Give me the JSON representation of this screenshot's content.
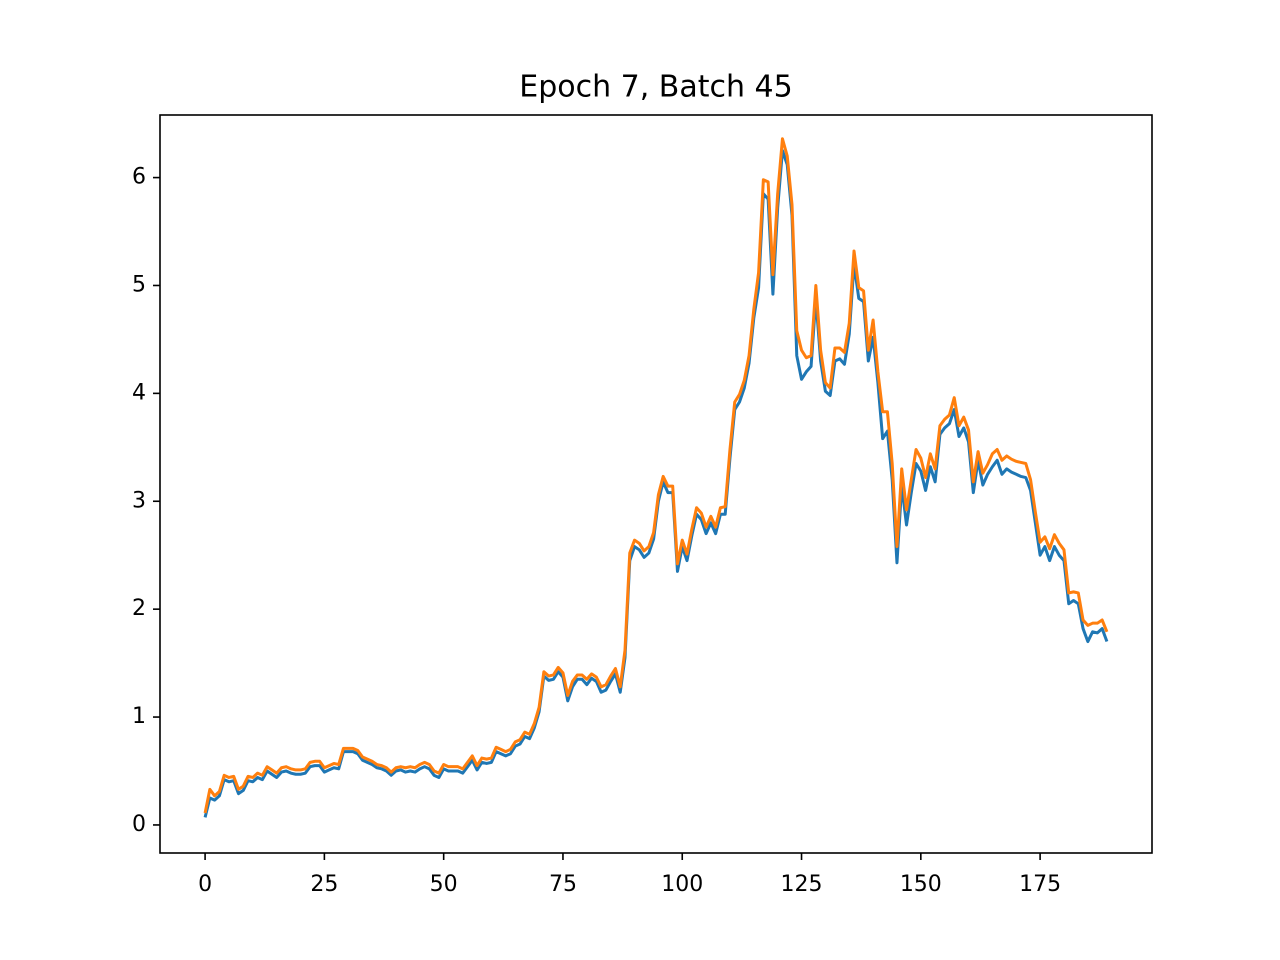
{
  "chart_data": {
    "type": "line",
    "title": "Epoch 7, Batch 45",
    "x": [
      0,
      1,
      2,
      3,
      4,
      5,
      6,
      7,
      8,
      9,
      10,
      11,
      12,
      13,
      14,
      15,
      16,
      17,
      18,
      19,
      20,
      21,
      22,
      23,
      24,
      25,
      26,
      27,
      28,
      29,
      30,
      31,
      32,
      33,
      34,
      35,
      36,
      37,
      38,
      39,
      40,
      41,
      42,
      43,
      44,
      45,
      46,
      47,
      48,
      49,
      50,
      51,
      52,
      53,
      54,
      55,
      56,
      57,
      58,
      59,
      60,
      61,
      62,
      63,
      64,
      65,
      66,
      67,
      68,
      69,
      70,
      71,
      72,
      73,
      74,
      75,
      76,
      77,
      78,
      79,
      80,
      81,
      82,
      83,
      84,
      85,
      86,
      87,
      88,
      89,
      90,
      91,
      92,
      93,
      94,
      95,
      96,
      97,
      98,
      99,
      100,
      101,
      102,
      103,
      104,
      105,
      106,
      107,
      108,
      109,
      110,
      111,
      112,
      113,
      114,
      115,
      116,
      117,
      118,
      119,
      120,
      121,
      122,
      123,
      124,
      125,
      126,
      127,
      128,
      129,
      130,
      131,
      132,
      133,
      134,
      135,
      136,
      137,
      138,
      139,
      140,
      141,
      142,
      143,
      144,
      145,
      146,
      147,
      148,
      149,
      150,
      151,
      152,
      153,
      154,
      155,
      156,
      157,
      158,
      159,
      160,
      161,
      162,
      163,
      164,
      165,
      166,
      167,
      168,
      169,
      170,
      171,
      172,
      173,
      174,
      175,
      176,
      177,
      178,
      179,
      180,
      181,
      182,
      183,
      184,
      185,
      186,
      187,
      188,
      189
    ],
    "series": [
      {
        "color": "#1f77b4",
        "values": [
          0.07,
          0.25,
          0.23,
          0.27,
          0.42,
          0.4,
          0.41,
          0.29,
          0.32,
          0.41,
          0.4,
          0.44,
          0.42,
          0.5,
          0.47,
          0.44,
          0.49,
          0.5,
          0.48,
          0.47,
          0.47,
          0.48,
          0.54,
          0.55,
          0.55,
          0.49,
          0.51,
          0.53,
          0.52,
          0.68,
          0.68,
          0.68,
          0.66,
          0.6,
          0.58,
          0.56,
          0.53,
          0.52,
          0.5,
          0.46,
          0.5,
          0.51,
          0.49,
          0.5,
          0.49,
          0.52,
          0.54,
          0.52,
          0.46,
          0.44,
          0.52,
          0.5,
          0.5,
          0.5,
          0.48,
          0.54,
          0.6,
          0.51,
          0.58,
          0.57,
          0.58,
          0.68,
          0.66,
          0.64,
          0.66,
          0.73,
          0.75,
          0.82,
          0.8,
          0.9,
          1.05,
          1.38,
          1.34,
          1.35,
          1.42,
          1.37,
          1.15,
          1.28,
          1.35,
          1.35,
          1.3,
          1.36,
          1.33,
          1.23,
          1.25,
          1.33,
          1.4,
          1.23,
          1.55,
          2.45,
          2.58,
          2.55,
          2.48,
          2.52,
          2.65,
          3.0,
          3.18,
          3.08,
          3.08,
          2.35,
          2.58,
          2.45,
          2.68,
          2.88,
          2.83,
          2.7,
          2.8,
          2.7,
          2.88,
          2.88,
          3.4,
          3.85,
          3.92,
          4.05,
          4.28,
          4.7,
          4.98,
          5.85,
          5.8,
          4.92,
          5.72,
          6.25,
          6.12,
          5.65,
          4.35,
          4.13,
          4.2,
          4.25,
          4.88,
          4.3,
          4.02,
          3.98,
          4.3,
          4.32,
          4.27,
          4.55,
          5.2,
          4.88,
          4.85,
          4.3,
          4.52,
          4.1,
          3.58,
          3.65,
          3.2,
          2.43,
          3.15,
          2.78,
          3.08,
          3.35,
          3.28,
          3.1,
          3.32,
          3.18,
          3.62,
          3.68,
          3.72,
          3.85,
          3.6,
          3.68,
          3.55,
          3.08,
          3.38,
          3.15,
          3.25,
          3.32,
          3.38,
          3.25,
          3.3,
          3.27,
          3.25,
          3.23,
          3.22,
          3.1,
          2.8,
          2.5,
          2.58,
          2.45,
          2.58,
          2.5,
          2.45,
          2.05,
          2.08,
          2.05,
          1.82,
          1.7,
          1.79,
          1.78,
          1.82,
          1.7
        ]
      },
      {
        "color": "#ff7f0e",
        "values": [
          0.11,
          0.33,
          0.27,
          0.31,
          0.46,
          0.44,
          0.45,
          0.33,
          0.36,
          0.45,
          0.44,
          0.48,
          0.46,
          0.54,
          0.51,
          0.48,
          0.53,
          0.54,
          0.52,
          0.51,
          0.51,
          0.52,
          0.58,
          0.59,
          0.59,
          0.53,
          0.55,
          0.57,
          0.56,
          0.71,
          0.71,
          0.71,
          0.69,
          0.63,
          0.61,
          0.59,
          0.56,
          0.55,
          0.53,
          0.49,
          0.53,
          0.54,
          0.53,
          0.54,
          0.53,
          0.56,
          0.58,
          0.56,
          0.5,
          0.48,
          0.56,
          0.54,
          0.54,
          0.54,
          0.52,
          0.58,
          0.64,
          0.55,
          0.62,
          0.61,
          0.62,
          0.72,
          0.7,
          0.68,
          0.7,
          0.77,
          0.79,
          0.86,
          0.84,
          0.94,
          1.09,
          1.42,
          1.38,
          1.39,
          1.46,
          1.41,
          1.2,
          1.33,
          1.39,
          1.39,
          1.35,
          1.4,
          1.37,
          1.28,
          1.3,
          1.38,
          1.45,
          1.28,
          1.62,
          2.52,
          2.64,
          2.61,
          2.54,
          2.58,
          2.71,
          3.06,
          3.23,
          3.14,
          3.14,
          2.42,
          2.64,
          2.51,
          2.74,
          2.94,
          2.89,
          2.76,
          2.86,
          2.76,
          2.94,
          2.95,
          3.48,
          3.92,
          3.99,
          4.12,
          4.35,
          4.78,
          5.12,
          5.98,
          5.96,
          5.1,
          5.85,
          6.36,
          6.2,
          5.75,
          4.58,
          4.4,
          4.33,
          4.35,
          5.0,
          4.4,
          4.1,
          4.05,
          4.42,
          4.42,
          4.38,
          4.65,
          5.32,
          4.98,
          4.95,
          4.4,
          4.68,
          4.2,
          3.83,
          3.83,
          3.35,
          2.58,
          3.3,
          2.92,
          3.2,
          3.48,
          3.4,
          3.22,
          3.44,
          3.3,
          3.7,
          3.76,
          3.8,
          3.96,
          3.7,
          3.78,
          3.66,
          3.18,
          3.46,
          3.26,
          3.34,
          3.44,
          3.48,
          3.38,
          3.42,
          3.39,
          3.37,
          3.36,
          3.35,
          3.2,
          2.9,
          2.62,
          2.67,
          2.56,
          2.69,
          2.61,
          2.55,
          2.15,
          2.16,
          2.15,
          1.9,
          1.85,
          1.87,
          1.87,
          1.9,
          1.79
        ]
      }
    ],
    "xlim": [
      -9.45,
      198.45
    ],
    "xticks": [
      0,
      25,
      50,
      75,
      100,
      125,
      150,
      175
    ],
    "ylim": [
      -0.26,
      6.58
    ],
    "yticks": [
      0,
      1,
      2,
      3,
      4,
      5,
      6
    ],
    "grid": false
  }
}
